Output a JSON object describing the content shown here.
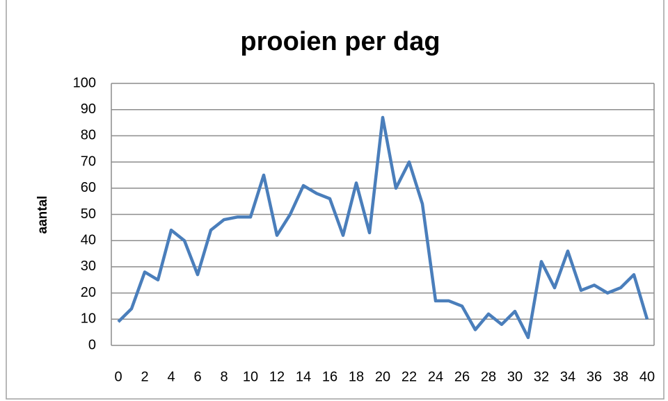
{
  "chart_data": {
    "type": "line",
    "title": "prooien per dag",
    "y_label": "aantal",
    "x": [
      0,
      1,
      2,
      3,
      4,
      5,
      6,
      7,
      8,
      9,
      10,
      11,
      12,
      13,
      14,
      15,
      16,
      17,
      18,
      19,
      20,
      21,
      22,
      23,
      24,
      25,
      26,
      27,
      28,
      29,
      30,
      31,
      32,
      33,
      34,
      35,
      36,
      37,
      38,
      39,
      40
    ],
    "values": [
      9,
      14,
      28,
      25,
      44,
      40,
      27,
      44,
      48,
      49,
      49,
      65,
      42,
      50,
      61,
      58,
      56,
      42,
      62,
      43,
      87,
      60,
      70,
      54,
      17,
      17,
      15,
      6,
      12,
      8,
      13,
      3,
      32,
      22,
      36,
      21,
      23,
      20,
      22,
      27,
      10
    ],
    "color": "#4a7ebb",
    "xlim": [
      0,
      40
    ],
    "xticks": [
      0,
      2,
      4,
      6,
      8,
      10,
      12,
      14,
      16,
      18,
      20,
      22,
      24,
      26,
      28,
      30,
      32,
      34,
      36,
      38,
      40
    ],
    "ylim": [
      0,
      100
    ],
    "yticks": [
      0,
      10,
      20,
      30,
      40,
      50,
      60,
      70,
      80,
      90,
      100
    ],
    "grid": true
  }
}
